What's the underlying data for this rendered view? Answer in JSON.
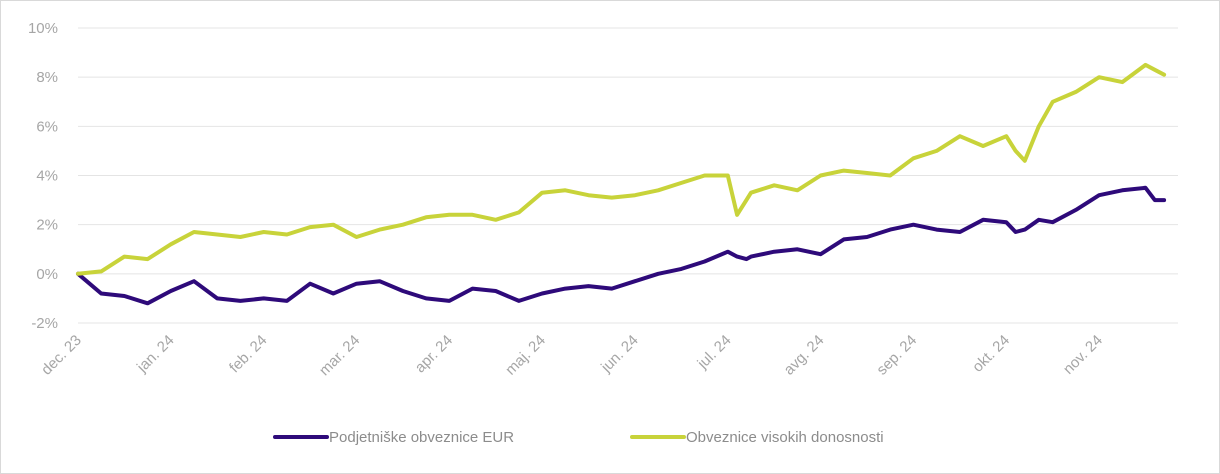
{
  "chart_data": {
    "type": "line",
    "title": "",
    "xlabel": "",
    "ylabel": "",
    "ylim": [
      -2,
      10
    ],
    "y_ticks": [
      -2,
      0,
      2,
      4,
      6,
      8,
      10
    ],
    "y_tick_labels": [
      "-2%",
      "0%",
      "2%",
      "4%",
      "6%",
      "8%",
      "10%"
    ],
    "grid": "horizontal",
    "legend_position": "bottom",
    "x_tick_labels": [
      "dec. 23",
      "jan. 24",
      "feb. 24",
      "mar. 24",
      "apr. 24",
      "maj. 24",
      "jun. 24",
      "jul. 24",
      "avg. 24",
      "sep. 24",
      "okt. 24",
      "nov. 24"
    ],
    "x": [
      0,
      0.25,
      0.5,
      0.75,
      1,
      1.25,
      1.5,
      1.75,
      2,
      2.25,
      2.5,
      2.75,
      3,
      3.25,
      3.5,
      3.75,
      4,
      4.25,
      4.5,
      4.75,
      5,
      5.25,
      5.5,
      5.75,
      6,
      6.25,
      6.5,
      6.75,
      7,
      7.1,
      7.2,
      7.25,
      7.5,
      7.75,
      8,
      8.25,
      8.5,
      8.75,
      9,
      9.25,
      9.5,
      9.75,
      10,
      10.1,
      10.2,
      10.35,
      10.5,
      10.75,
      11,
      11.25,
      11.5,
      11.6,
      11.7
    ],
    "series": [
      {
        "name": "Podjetniške obveznice EUR",
        "color": "#2e0a7a",
        "values": [
          0.0,
          -0.8,
          -0.9,
          -1.2,
          -0.7,
          -0.3,
          -1.0,
          -1.1,
          -1.0,
          -1.1,
          -0.4,
          -0.8,
          -0.4,
          -0.3,
          -0.7,
          -1.0,
          -1.1,
          -0.6,
          -0.7,
          -1.1,
          -0.8,
          -0.6,
          -0.5,
          -0.6,
          -0.3,
          0.0,
          0.2,
          0.5,
          0.9,
          0.7,
          0.6,
          0.7,
          0.9,
          1.0,
          0.8,
          1.4,
          1.5,
          1.8,
          2.0,
          1.8,
          1.7,
          2.2,
          2.1,
          1.7,
          1.8,
          2.2,
          2.1,
          2.6,
          3.2,
          3.4,
          3.5,
          3.0,
          3.0
        ]
      },
      {
        "name": "Obveznice visokih donosnosti",
        "color": "#c8d33a",
        "values": [
          0.0,
          0.1,
          0.7,
          0.6,
          1.2,
          1.7,
          1.6,
          1.5,
          1.7,
          1.6,
          1.9,
          2.0,
          1.5,
          1.8,
          2.0,
          2.3,
          2.4,
          2.4,
          2.2,
          2.5,
          3.3,
          3.4,
          3.2,
          3.1,
          3.2,
          3.4,
          3.7,
          4.0,
          4.0,
          2.4,
          3.0,
          3.3,
          3.6,
          3.4,
          4.0,
          4.2,
          4.1,
          4.0,
          4.7,
          5.0,
          5.6,
          5.2,
          5.6,
          5.0,
          4.6,
          6.0,
          7.0,
          7.4,
          8.0,
          7.8,
          8.5,
          8.3,
          8.1
        ]
      }
    ]
  }
}
